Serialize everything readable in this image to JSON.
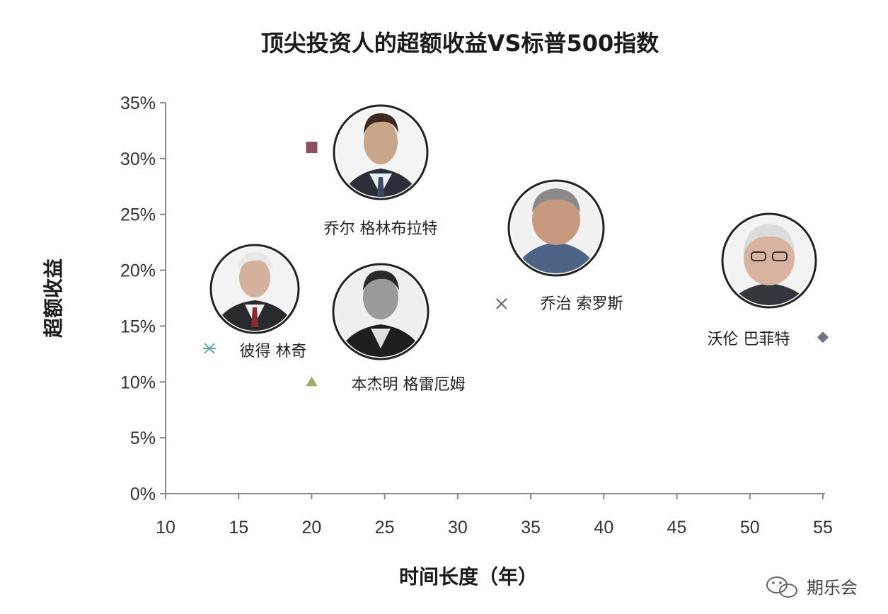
{
  "chart_data": {
    "type": "scatter",
    "title": "顶尖投资人的超额收益VS标普500指数",
    "xlabel": "时间长度（年）",
    "ylabel": "超额收益",
    "xlim": [
      10,
      55
    ],
    "ylim": [
      0,
      35
    ],
    "x_ticks": [
      "10",
      "15",
      "20",
      "25",
      "30",
      "35",
      "40",
      "45",
      "50",
      "55"
    ],
    "y_ticks": [
      "0%",
      "5%",
      "10%",
      "15%",
      "20%",
      "25%",
      "30%",
      "35%"
    ],
    "grid": false,
    "points": [
      {
        "name": "乔尔 格林布拉特",
        "x": 20,
        "y": 31,
        "marker": "square",
        "color": "#8b4f5e"
      },
      {
        "name": "彼得 林奇",
        "x": 13,
        "y": 13,
        "marker": "asterisk",
        "color": "#5fa8a0"
      },
      {
        "name": "本杰明 格雷厄姆",
        "x": 20,
        "y": 10,
        "marker": "triangle",
        "color": "#a3aa6a"
      },
      {
        "name": "乔治 索罗斯",
        "x": 33,
        "y": 17,
        "marker": "x",
        "color": "#666666"
      },
      {
        "name": "沃伦 巴菲特",
        "x": 55,
        "y": 14,
        "marker": "diamond",
        "color": "#6e7480"
      }
    ]
  },
  "watermark": "期乐会",
  "watermark_icon": "wechat-icon"
}
